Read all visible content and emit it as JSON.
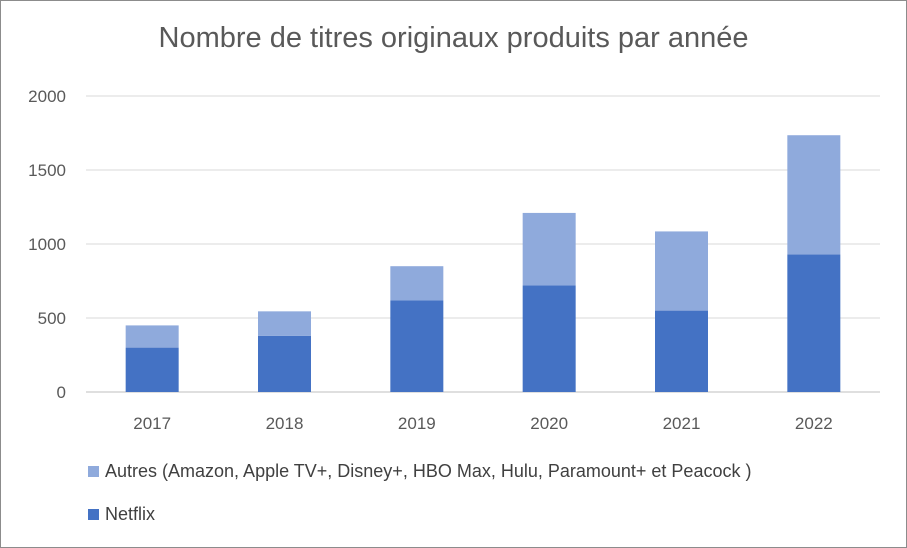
{
  "chart_data": {
    "type": "bar",
    "stacked": true,
    "title": "Nombre de titres originaux produits par année",
    "xlabel": "",
    "ylabel": "",
    "categories": [
      "2017",
      "2018",
      "2019",
      "2020",
      "2021",
      "2022"
    ],
    "yticks": [
      "0",
      "500",
      "1000",
      "1500",
      "2000"
    ],
    "ylim": [
      0,
      2000
    ],
    "grid": true,
    "legend_position": "bottom-left",
    "series": [
      {
        "name": "Netflix",
        "color": "#4472c4",
        "values": [
          300,
          380,
          620,
          720,
          550,
          930
        ]
      },
      {
        "name": "Autres (Amazon, Apple TV+, Disney+, HBO Max, Hulu, Paramount+ et Peacock )",
        "color": "#8faadc",
        "values": [
          150,
          165,
          230,
          490,
          535,
          805
        ]
      }
    ]
  }
}
